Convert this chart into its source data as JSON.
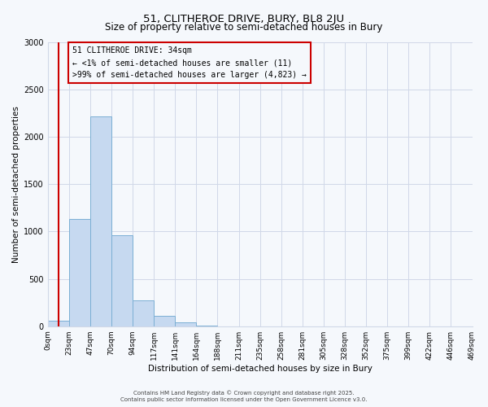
{
  "title": "51, CLITHEROE DRIVE, BURY, BL8 2JU",
  "subtitle": "Size of property relative to semi-detached houses in Bury",
  "xlabel": "Distribution of semi-detached houses by size in Bury",
  "ylabel": "Number of semi-detached properties",
  "bin_labels": [
    "0sqm",
    "23sqm",
    "47sqm",
    "70sqm",
    "94sqm",
    "117sqm",
    "141sqm",
    "164sqm",
    "188sqm",
    "211sqm",
    "235sqm",
    "258sqm",
    "281sqm",
    "305sqm",
    "328sqm",
    "352sqm",
    "375sqm",
    "399sqm",
    "422sqm",
    "446sqm",
    "469sqm"
  ],
  "bar_values": [
    60,
    1130,
    2210,
    960,
    270,
    105,
    40,
    10,
    0,
    0,
    0,
    0,
    0,
    0,
    0,
    0,
    0,
    0,
    0,
    0
  ],
  "bar_color": "#c6d9f0",
  "bar_edge_color": "#7bafd4",
  "vline_x": 0.5,
  "vline_color": "#cc0000",
  "annotation_title": "51 CLITHEROE DRIVE: 34sqm",
  "annotation_line1": "← <1% of semi-detached houses are smaller (11)",
  "annotation_line2": ">99% of semi-detached houses are larger (4,823) →",
  "annotation_box_color": "#cc0000",
  "ylim": [
    0,
    3000
  ],
  "yticks": [
    0,
    500,
    1000,
    1500,
    2000,
    2500,
    3000
  ],
  "footer1": "Contains HM Land Registry data © Crown copyright and database right 2025.",
  "footer2": "Contains public sector information licensed under the Open Government Licence v3.0.",
  "bg_color": "#f5f8fc",
  "grid_color": "#d0d8e8",
  "title_fontsize": 9.5,
  "subtitle_fontsize": 8.5,
  "axis_label_fontsize": 7.5,
  "tick_fontsize": 6.5,
  "annotation_fontsize": 7.0,
  "footer_fontsize": 5.0
}
